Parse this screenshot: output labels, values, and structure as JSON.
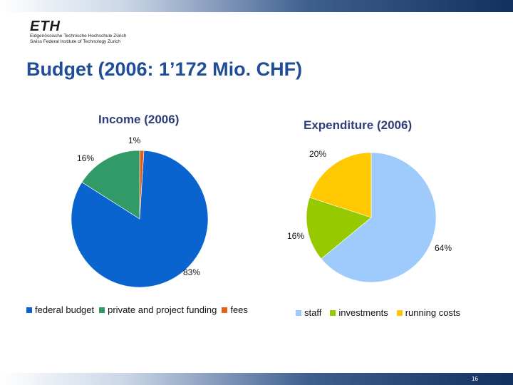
{
  "header": {
    "logo_text": "ETH",
    "logo_line1": "Eidgenössische Technische Hochschule Zürich",
    "logo_line2": "Swiss Federal Institute of Technology Zurich"
  },
  "slide": {
    "title": "Budget (2006: 1’172 Mio. CHF)",
    "page_number": "16"
  },
  "colors": {
    "title": "#1f4e96",
    "chart_title": "#2f3f77",
    "bar_dark": "#13305e"
  },
  "chart_data": [
    {
      "type": "pie",
      "title": "Income (2006)",
      "start_angle": 0,
      "slices": [
        {
          "label": "fees",
          "value": 1,
          "value_label": "1%",
          "color": "#e3601b"
        },
        {
          "label": "federal budget",
          "value": 83,
          "value_label": "83%",
          "color": "#0a64cf"
        },
        {
          "label": "private and project funding",
          "value": 16,
          "value_label": "16%",
          "color": "#329a66"
        }
      ],
      "legend": [
        "federal budget",
        "private and project funding",
        "fees"
      ],
      "legend_position": "bottom"
    },
    {
      "type": "pie",
      "title": "Expenditure (2006)",
      "start_angle": 0,
      "slices": [
        {
          "label": "staff",
          "value": 64,
          "value_label": "64%",
          "color": "#9ecbfb"
        },
        {
          "label": "investments",
          "value": 16,
          "value_label": "16%",
          "color": "#96c900"
        },
        {
          "label": "running costs",
          "value": 20,
          "value_label": "20%",
          "color": "#ffc800"
        }
      ],
      "legend": [
        "staff",
        "investments",
        "running costs"
      ],
      "legend_position": "bottom"
    }
  ]
}
